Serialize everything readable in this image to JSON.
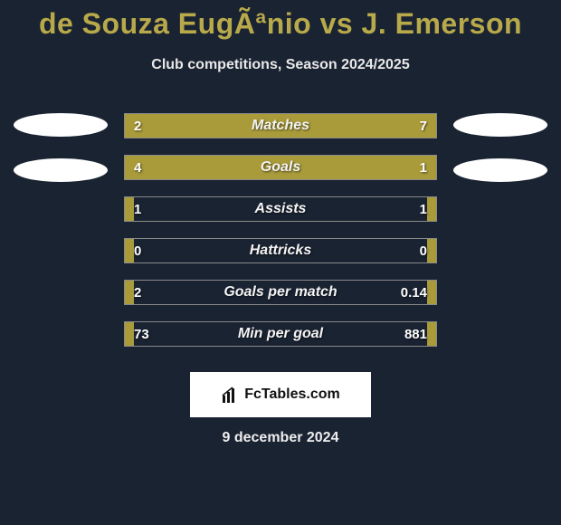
{
  "title": "de Souza EugÃªnio vs J. Emerson",
  "subtitle": "Club competitions, Season 2024/2025",
  "date": "9 december 2024",
  "logo": "FcTables.com",
  "colors": {
    "background": "#1a2332",
    "accent": "#a99b3a",
    "title": "#b8a94a",
    "border": "#8a8a8a",
    "avatar_bg": "#ffffff"
  },
  "stats": [
    {
      "label": "Matches",
      "left_val": "2",
      "right_val": "7",
      "left_pct": 22,
      "right_pct": 78
    },
    {
      "label": "Goals",
      "left_val": "4",
      "right_val": "1",
      "left_pct": 80,
      "right_pct": 20
    },
    {
      "label": "Assists",
      "left_val": "1",
      "right_val": "1",
      "left_pct": 3,
      "right_pct": 3
    },
    {
      "label": "Hattricks",
      "left_val": "0",
      "right_val": "0",
      "left_pct": 3,
      "right_pct": 3
    },
    {
      "label": "Goals per match",
      "left_val": "2",
      "right_val": "0.14",
      "left_pct": 3,
      "right_pct": 3
    },
    {
      "label": "Min per goal",
      "left_val": "73",
      "right_val": "881",
      "left_pct": 3,
      "right_pct": 3
    }
  ]
}
